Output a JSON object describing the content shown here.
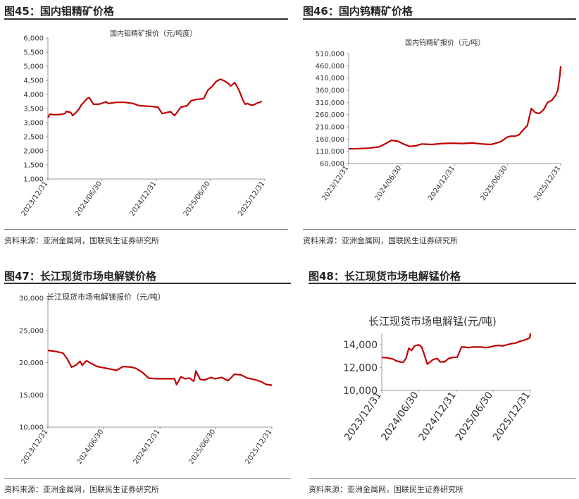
{
  "source_text": "资料来源：亚洲金属网，国联民生证券研究所",
  "panels": [
    {
      "figure_title": "图45：国内钼精矿价格",
      "chart_data": {
        "type": "line",
        "title": "国内钼精矿报价（元/吨度）",
        "ylim": [
          1000,
          6000
        ],
        "yticks": [
          1000,
          1500,
          2000,
          2500,
          3000,
          3500,
          4000,
          4500,
          5000,
          5500,
          6000
        ],
        "ytick_labels": [
          "1,000",
          "1,500",
          "2,000",
          "2,500",
          "3,000",
          "3,500",
          "4,000",
          "4,500",
          "5,000",
          "5,500",
          "6,000"
        ],
        "xticks": [
          "2023/12/31",
          "2024/06/30",
          "2024/12/31",
          "2025/06/30",
          "2025/12/31"
        ],
        "x": [
          "2023-12-31",
          "2024-01-07",
          "2024-01-21",
          "2024-02-12",
          "2024-02-26",
          "2024-03-02",
          "2024-03-17",
          "2024-03-24",
          "2024-03-31",
          "2024-04-14",
          "2024-04-21",
          "2024-05-12",
          "2024-05-19",
          "2024-06-02",
          "2024-06-23",
          "2024-07-14",
          "2024-07-21",
          "2024-08-18",
          "2024-09-15",
          "2024-10-13",
          "2024-11-03",
          "2024-12-08",
          "2025-01-05",
          "2025-01-19",
          "2025-02-16",
          "2025-02-23",
          "2025-03-02",
          "2025-03-23",
          "2025-04-13",
          "2025-04-27",
          "2025-05-18",
          "2025-06-08",
          "2025-06-22",
          "2025-07-06",
          "2025-07-20",
          "2025-08-03",
          "2025-08-17",
          "2025-08-31",
          "2025-09-07",
          "2025-09-21",
          "2025-10-05",
          "2025-10-19",
          "2025-10-26",
          "2025-11-02",
          "2025-11-16",
          "2025-11-23",
          "2025-12-07",
          "2025-12-21"
        ],
        "series": [
          {
            "values": [
              3180,
              3300,
              3280,
              3290,
              3320,
              3400,
              3360,
              3250,
              3320,
              3480,
              3620,
              3860,
              3880,
              3650,
              3660,
              3740,
              3680,
              3720,
              3720,
              3680,
              3600,
              3580,
              3550,
              3320,
              3390,
              3320,
              3250,
              3550,
              3600,
              3780,
              3830,
              3850,
              4150,
              4280,
              4460,
              4540,
              4480,
              4380,
              4300,
              4420,
              4150,
              3780,
              3650,
              3680,
              3620,
              3630,
              3700,
              3750
            ],
            "color": "#c00000"
          }
        ]
      }
    },
    {
      "figure_title": "图46：国内钨精矿价格",
      "chart_data": {
        "type": "line",
        "title": "国内钨精矿报价（元/吨）",
        "ylim": [
          60000,
          510000
        ],
        "yticks": [
          60000,
          110000,
          160000,
          210000,
          260000,
          310000,
          360000,
          410000,
          460000,
          510000
        ],
        "ytick_labels": [
          "60,000",
          "110,000",
          "160,000",
          "210,000",
          "260,000",
          "310,000",
          "360,000",
          "410,000",
          "460,000",
          "510,000"
        ],
        "xticks": [
          "2023/12/31",
          "2024/06/30",
          "2024/12/31",
          "2025/06/30",
          "2025/12/31"
        ],
        "x": [
          "2023-12-31",
          "2024-02-04",
          "2024-03-10",
          "2024-04-14",
          "2024-05-12",
          "2024-05-26",
          "2024-06-16",
          "2024-07-07",
          "2024-07-28",
          "2024-08-18",
          "2024-09-08",
          "2024-10-13",
          "2024-11-17",
          "2024-12-22",
          "2025-01-26",
          "2025-03-02",
          "2025-04-06",
          "2025-05-04",
          "2025-05-18",
          "2025-06-08",
          "2025-06-29",
          "2025-07-13",
          "2025-07-27",
          "2025-08-10",
          "2025-08-24",
          "2025-09-07",
          "2025-09-21",
          "2025-10-05",
          "2025-10-19",
          "2025-11-02",
          "2025-11-16",
          "2025-11-30",
          "2025-12-14",
          "2025-12-21",
          "2025-12-28",
          "2025-12-31"
        ],
        "series": [
          {
            "values": [
              120000,
              121000,
              123000,
              128000,
              145000,
              155000,
              152000,
              140000,
              130000,
              132000,
              140000,
              138000,
              142000,
              143000,
              142000,
              144000,
              140000,
              138000,
              142000,
              150000,
              168000,
              172000,
              172000,
              178000,
              198000,
              215000,
              285000,
              268000,
              265000,
              280000,
              310000,
              318000,
              340000,
              360000,
              420000,
              458000
            ],
            "color": "#c00000"
          }
        ]
      }
    },
    {
      "figure_title": "图47：长江现货市场电解镁价格",
      "chart_data": {
        "type": "line",
        "title": "长江现货市场电解镁报价（元/吨）",
        "ylim": [
          10000,
          30000
        ],
        "yticks": [
          10000,
          15000,
          20000,
          25000,
          30000
        ],
        "ytick_labels": [
          "10,000",
          "15,000",
          "20,000",
          "25,000",
          "30,000"
        ],
        "xticks": [
          "2023/12/31",
          "2024/06/30",
          "2024/12/31",
          "2025/06/30",
          "2025/12/31"
        ],
        "x": [
          "2023-12-31",
          "2024-01-14",
          "2024-01-28",
          "2024-02-18",
          "2024-03-03",
          "2024-03-17",
          "2024-03-31",
          "2024-04-14",
          "2024-04-21",
          "2024-05-05",
          "2024-05-19",
          "2024-06-09",
          "2024-06-30",
          "2024-07-21",
          "2024-08-11",
          "2024-09-01",
          "2024-09-29",
          "2024-10-13",
          "2024-11-03",
          "2024-11-24",
          "2024-12-22",
          "2025-01-19",
          "2025-02-16",
          "2025-02-23",
          "2025-03-02",
          "2025-03-09",
          "2025-03-23",
          "2025-04-06",
          "2025-04-20",
          "2025-04-27",
          "2025-05-11",
          "2025-05-25",
          "2025-06-15",
          "2025-06-29",
          "2025-07-20",
          "2025-08-10",
          "2025-08-31",
          "2025-09-21",
          "2025-10-12",
          "2025-11-02",
          "2025-11-23",
          "2025-12-14",
          "2025-12-31"
        ],
        "series": [
          {
            "values": [
              21900,
              21800,
              21700,
              21500,
              20600,
              19300,
              19600,
              20200,
              19600,
              20300,
              19900,
              19400,
              19200,
              19000,
              18800,
              19400,
              19300,
              19100,
              18500,
              17600,
              17500,
              17500,
              17500,
              16600,
              17200,
              17800,
              17500,
              17600,
              17100,
              18700,
              17400,
              17300,
              17700,
              17500,
              17700,
              17200,
              18200,
              18100,
              17600,
              17400,
              17100,
              16600,
              16500
            ],
            "color": "#c00000"
          }
        ]
      }
    },
    {
      "figure_title": "图48：长江现货市场电解锰价格",
      "chart_data": {
        "type": "line",
        "title": "长江现货市场电解锰(元/吨)",
        "ylim": [
          10000,
          15000
        ],
        "yticks": [
          10000,
          12000,
          14000
        ],
        "ytick_labels": [
          "10,000",
          "12,000",
          "14,000"
        ],
        "xticks": [
          "2023/12/31",
          "2024/06/30",
          "2024/12/31",
          "2025/06/30",
          "2025/12/31"
        ],
        "x": [
          "2023-12-31",
          "2024-01-28",
          "2024-02-25",
          "2024-03-10",
          "2024-03-31",
          "2024-04-14",
          "2024-04-28",
          "2024-05-12",
          "2024-05-26",
          "2024-06-09",
          "2024-06-30",
          "2024-07-14",
          "2024-07-28",
          "2024-08-11",
          "2024-08-25",
          "2024-09-08",
          "2024-09-29",
          "2024-10-13",
          "2024-11-03",
          "2024-11-24",
          "2024-12-15",
          "2025-01-05",
          "2025-01-26",
          "2025-02-09",
          "2025-03-02",
          "2025-03-23",
          "2025-04-13",
          "2025-05-04",
          "2025-05-25",
          "2025-06-15",
          "2025-07-06",
          "2025-07-27",
          "2025-08-17",
          "2025-09-07",
          "2025-09-28",
          "2025-10-19",
          "2025-11-09",
          "2025-11-30",
          "2025-12-14",
          "2025-12-28",
          "2025-12-31"
        ],
        "series": [
          {
            "values": [
              12900,
              12850,
              12750,
              12600,
              12500,
              12450,
              12800,
              13700,
              13500,
              13900,
              14000,
              13800,
              13100,
              12300,
              12500,
              12700,
              12800,
              12500,
              12500,
              12800,
              12900,
              12900,
              13800,
              13800,
              13750,
              13800,
              13800,
              13800,
              13750,
              13800,
              13900,
              13950,
              13900,
              14000,
              14100,
              14150,
              14300,
              14400,
              14500,
              14600,
              15000
            ],
            "color": "#c00000"
          }
        ]
      }
    }
  ]
}
